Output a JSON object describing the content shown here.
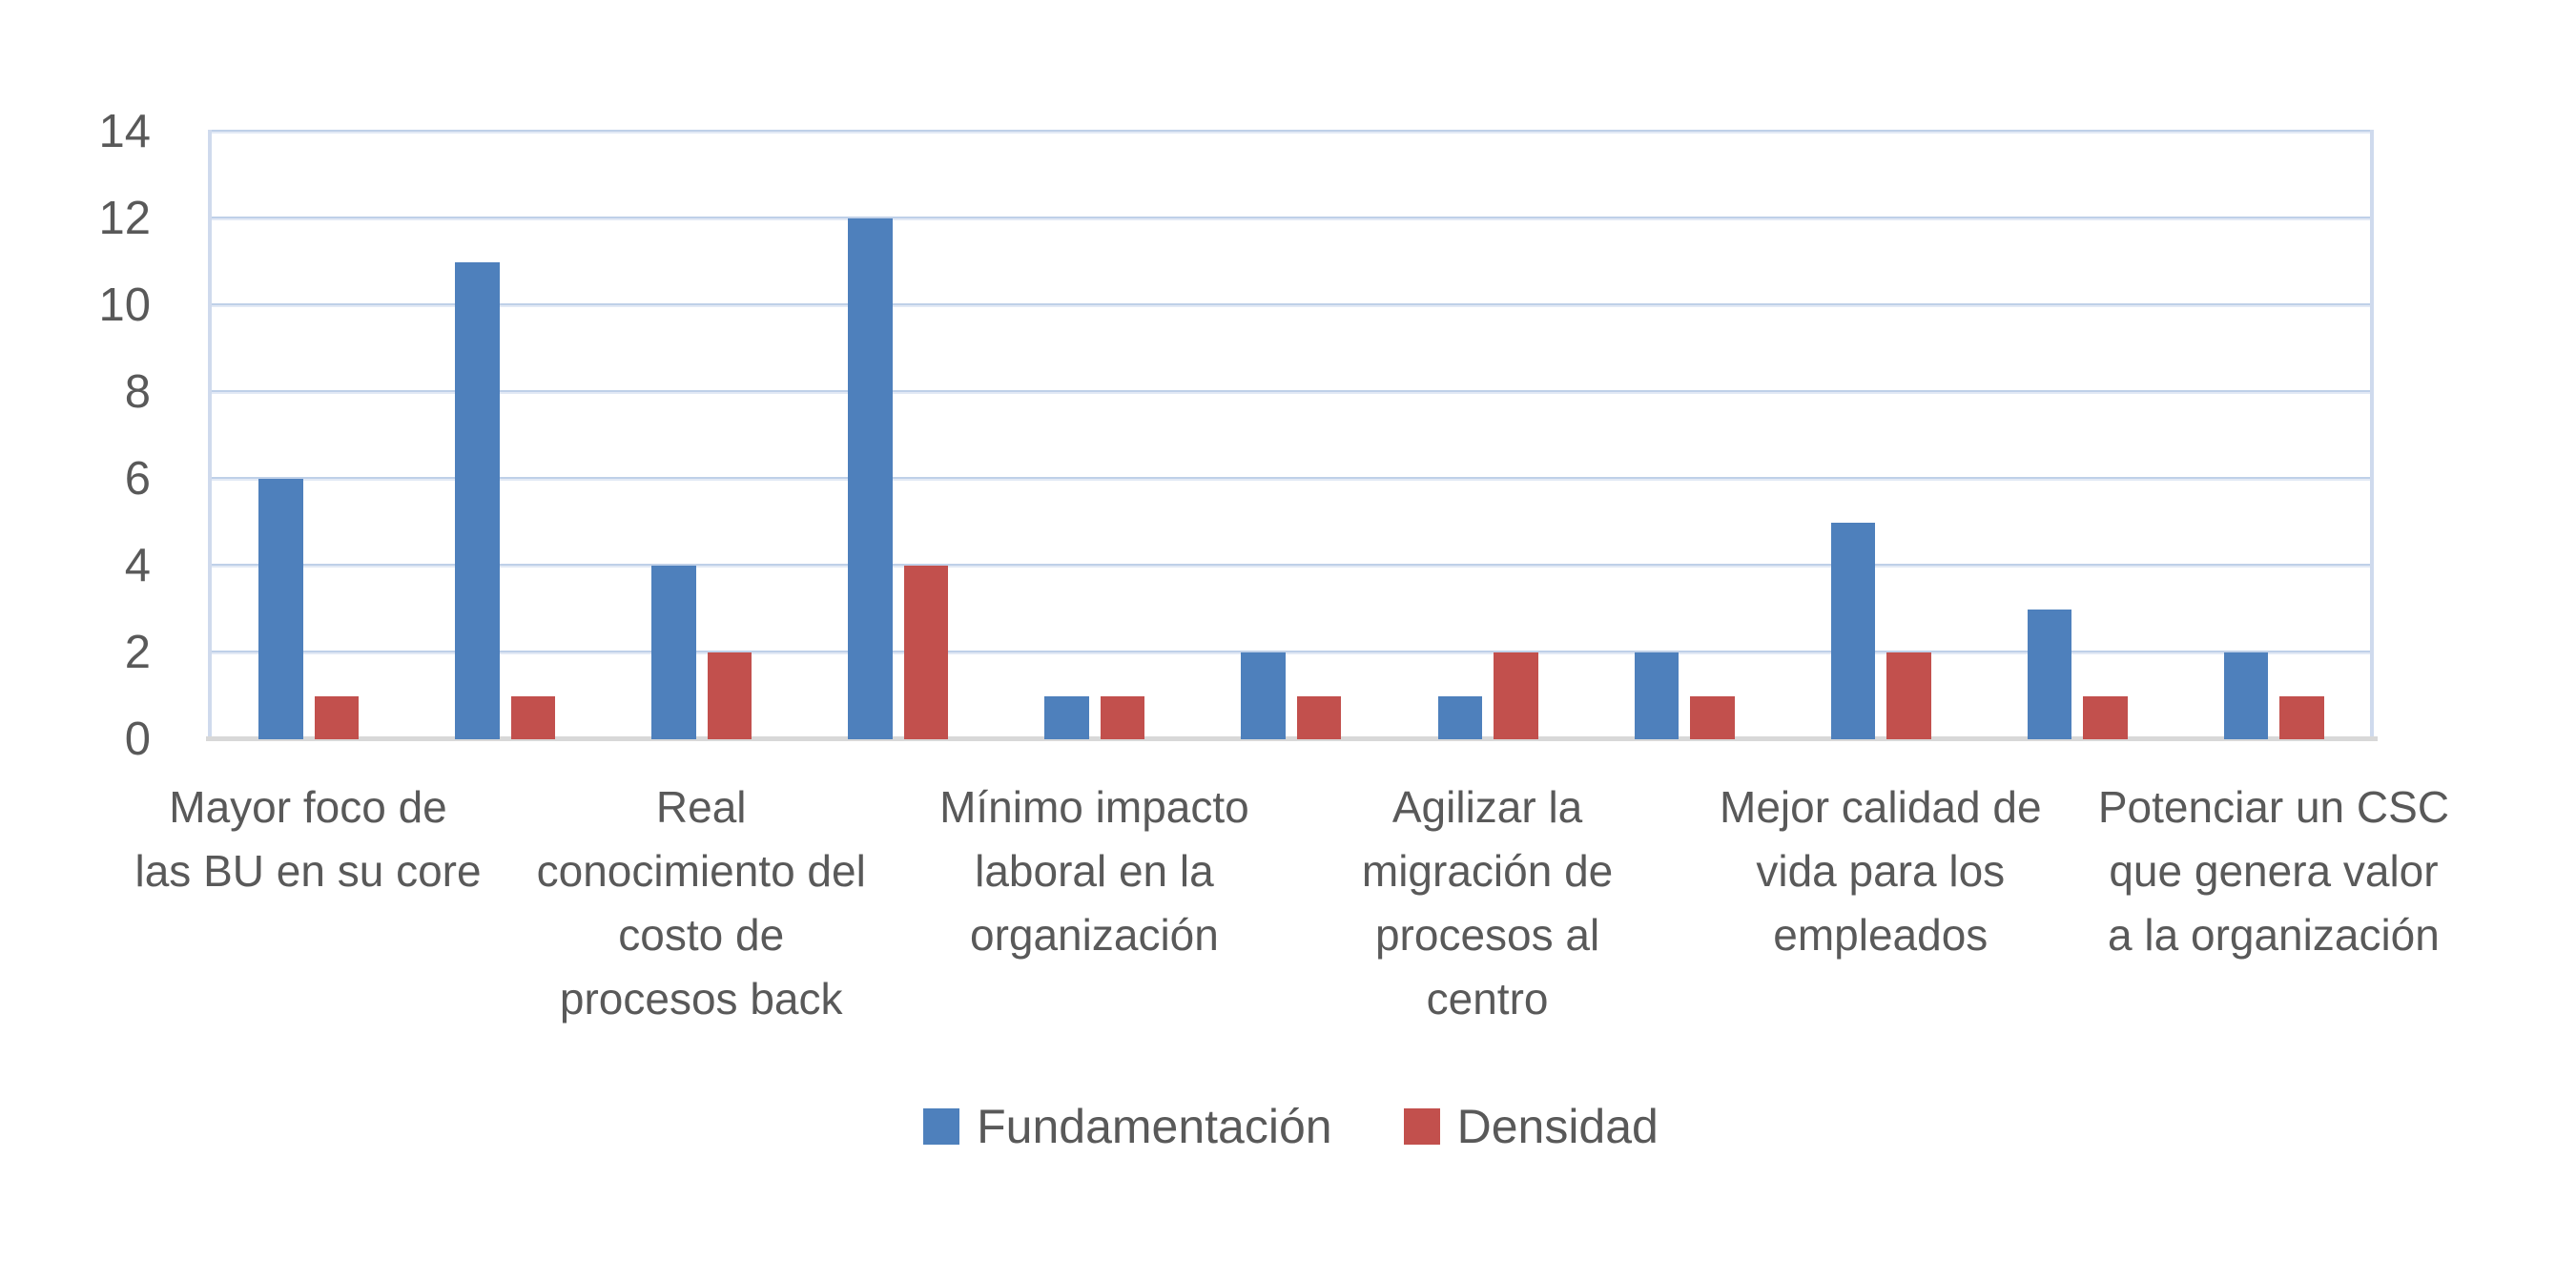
{
  "chart_data": {
    "type": "bar",
    "title": "",
    "xlabel": "",
    "ylabel": "",
    "categories": [
      "Mayor foco de las BU en su core",
      "",
      "Real conocimiento del costo de procesos back",
      "",
      "Mínimo impacto laboral en la organización",
      "",
      "Agilizar la migración de procesos al centro",
      "",
      "Mejor calidad de vida para los empleados",
      "",
      "Potenciar un CSC que genera valor a la organización"
    ],
    "category_label_lines": [
      [
        "Mayor foco de",
        "las BU en su core"
      ],
      [],
      [
        "Real",
        "conocimiento del",
        "costo de",
        "procesos back"
      ],
      [],
      [
        "Mínimo impacto",
        "laboral en la",
        "organización"
      ],
      [],
      [
        "Agilizar la",
        "migración de",
        "procesos al",
        "centro"
      ],
      [],
      [
        "Mejor calidad de",
        "vida para los",
        "empleados"
      ],
      [],
      [
        "Potenciar un CSC",
        "que genera valor",
        "a la organización"
      ]
    ],
    "series": [
      {
        "name": "Fundamentación",
        "color": "#4e80bc",
        "values": [
          6,
          11,
          4,
          12,
          1,
          2,
          1,
          2,
          5,
          3,
          2
        ]
      },
      {
        "name": "Densidad",
        "color": "#c2504d",
        "values": [
          1,
          1,
          2,
          4,
          1,
          1,
          2,
          1,
          2,
          1,
          1
        ]
      }
    ],
    "ylim": [
      0,
      14
    ],
    "yticks": [
      0,
      2,
      4,
      6,
      8,
      10,
      12,
      14
    ],
    "grid": true,
    "legend_position": "bottom-center"
  },
  "colors": {
    "gridline": "#c5d3ea",
    "axis_line": "#d8d8d8",
    "plot_border": "#cfdaed",
    "text": "#595959",
    "background": "#ffffff"
  }
}
